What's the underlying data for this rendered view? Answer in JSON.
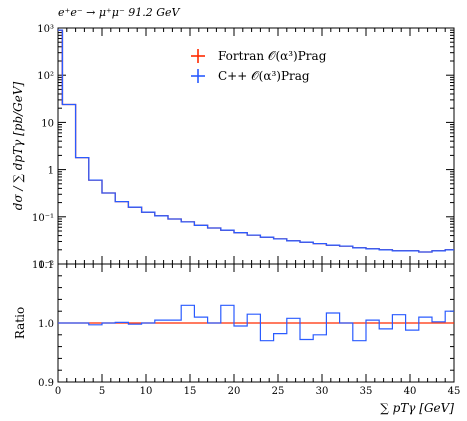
{
  "chart_data": [
    {
      "type": "line",
      "panel": "main",
      "title": "e⁺e⁻ → μ⁺μ⁻ 91.2 GeV",
      "ylabel": "dσ / ∑ dpTγ [pb/GeV]",
      "yscale": "log",
      "ylim": [
        0.01,
        1000
      ],
      "xlim": [
        0,
        45
      ],
      "yticks": [
        "10⁻²",
        "10⁻¹",
        "1",
        "10",
        "10²",
        "10³"
      ],
      "bin_edges": [
        0,
        0.5,
        2,
        3.5,
        5,
        6.5,
        8,
        9.5,
        11,
        12.5,
        14,
        15.5,
        17,
        18.5,
        20,
        21.5,
        23,
        24.5,
        26,
        27.5,
        29,
        30.5,
        32,
        33.5,
        35,
        36.5,
        38,
        39.5,
        41,
        42.5,
        44,
        45
      ],
      "legend_position": "top",
      "series": [
        {
          "name": "Fortran 𝒪(α³)Prag",
          "color": "#ff2a00",
          "values": [
            900,
            24,
            1.8,
            0.6,
            0.32,
            0.21,
            0.16,
            0.125,
            0.105,
            0.09,
            0.078,
            0.066,
            0.058,
            0.052,
            0.046,
            0.041,
            0.037,
            0.034,
            0.031,
            0.029,
            0.027,
            0.025,
            0.024,
            0.022,
            0.021,
            0.02,
            0.019,
            0.019,
            0.018,
            0.019,
            0.02
          ]
        },
        {
          "name": "C++ 𝒪(α³)Prag",
          "color": "#2a5bff",
          "values": [
            900,
            24,
            1.8,
            0.6,
            0.32,
            0.21,
            0.16,
            0.125,
            0.105,
            0.09,
            0.078,
            0.066,
            0.058,
            0.052,
            0.046,
            0.041,
            0.037,
            0.034,
            0.031,
            0.029,
            0.027,
            0.025,
            0.024,
            0.022,
            0.021,
            0.02,
            0.019,
            0.019,
            0.018,
            0.019,
            0.02
          ]
        }
      ]
    },
    {
      "type": "line",
      "panel": "ratio",
      "ylabel": "Ratio",
      "xlabel": "∑ pTγ [GeV]",
      "ylim": [
        0.9,
        1.1
      ],
      "xlim": [
        0,
        45
      ],
      "xticks": [
        0,
        5,
        10,
        15,
        20,
        25,
        30,
        35,
        40,
        45
      ],
      "yticks": [
        "0.9",
        "1.0",
        "1.1"
      ],
      "bin_edges": [
        0,
        0.5,
        2,
        3.5,
        5,
        6.5,
        8,
        9.5,
        11,
        12.5,
        14,
        15.5,
        17,
        18.5,
        20,
        21.5,
        23,
        24.5,
        26,
        27.5,
        29,
        30.5,
        32,
        33.5,
        35,
        36.5,
        38,
        39.5,
        41,
        42.5,
        44,
        45
      ],
      "series": [
        {
          "name": "Fortran 𝒪(α³)Prag",
          "color": "#ff2a00",
          "values": [
            1,
            1,
            1,
            1,
            1,
            1,
            1,
            1,
            1,
            1,
            1,
            1,
            1,
            1,
            1,
            1,
            1,
            1,
            1,
            1,
            1,
            1,
            1,
            1,
            1,
            1,
            1,
            1,
            1,
            1,
            1
          ]
        },
        {
          "name": "C++ 𝒪(α³)Prag",
          "color": "#2a5bff",
          "values": [
            1.0,
            1.0,
            1.0,
            0.997,
            1.0,
            1.001,
            0.998,
            1.0,
            1.005,
            1.005,
            1.03,
            1.01,
            1.0,
            1.03,
            0.995,
            1.015,
            0.97,
            0.982,
            1.008,
            0.972,
            0.98,
            1.017,
            1.0,
            0.97,
            1.005,
            0.99,
            1.014,
            0.988,
            1.01,
            1.002,
            1.02
          ]
        }
      ]
    }
  ]
}
